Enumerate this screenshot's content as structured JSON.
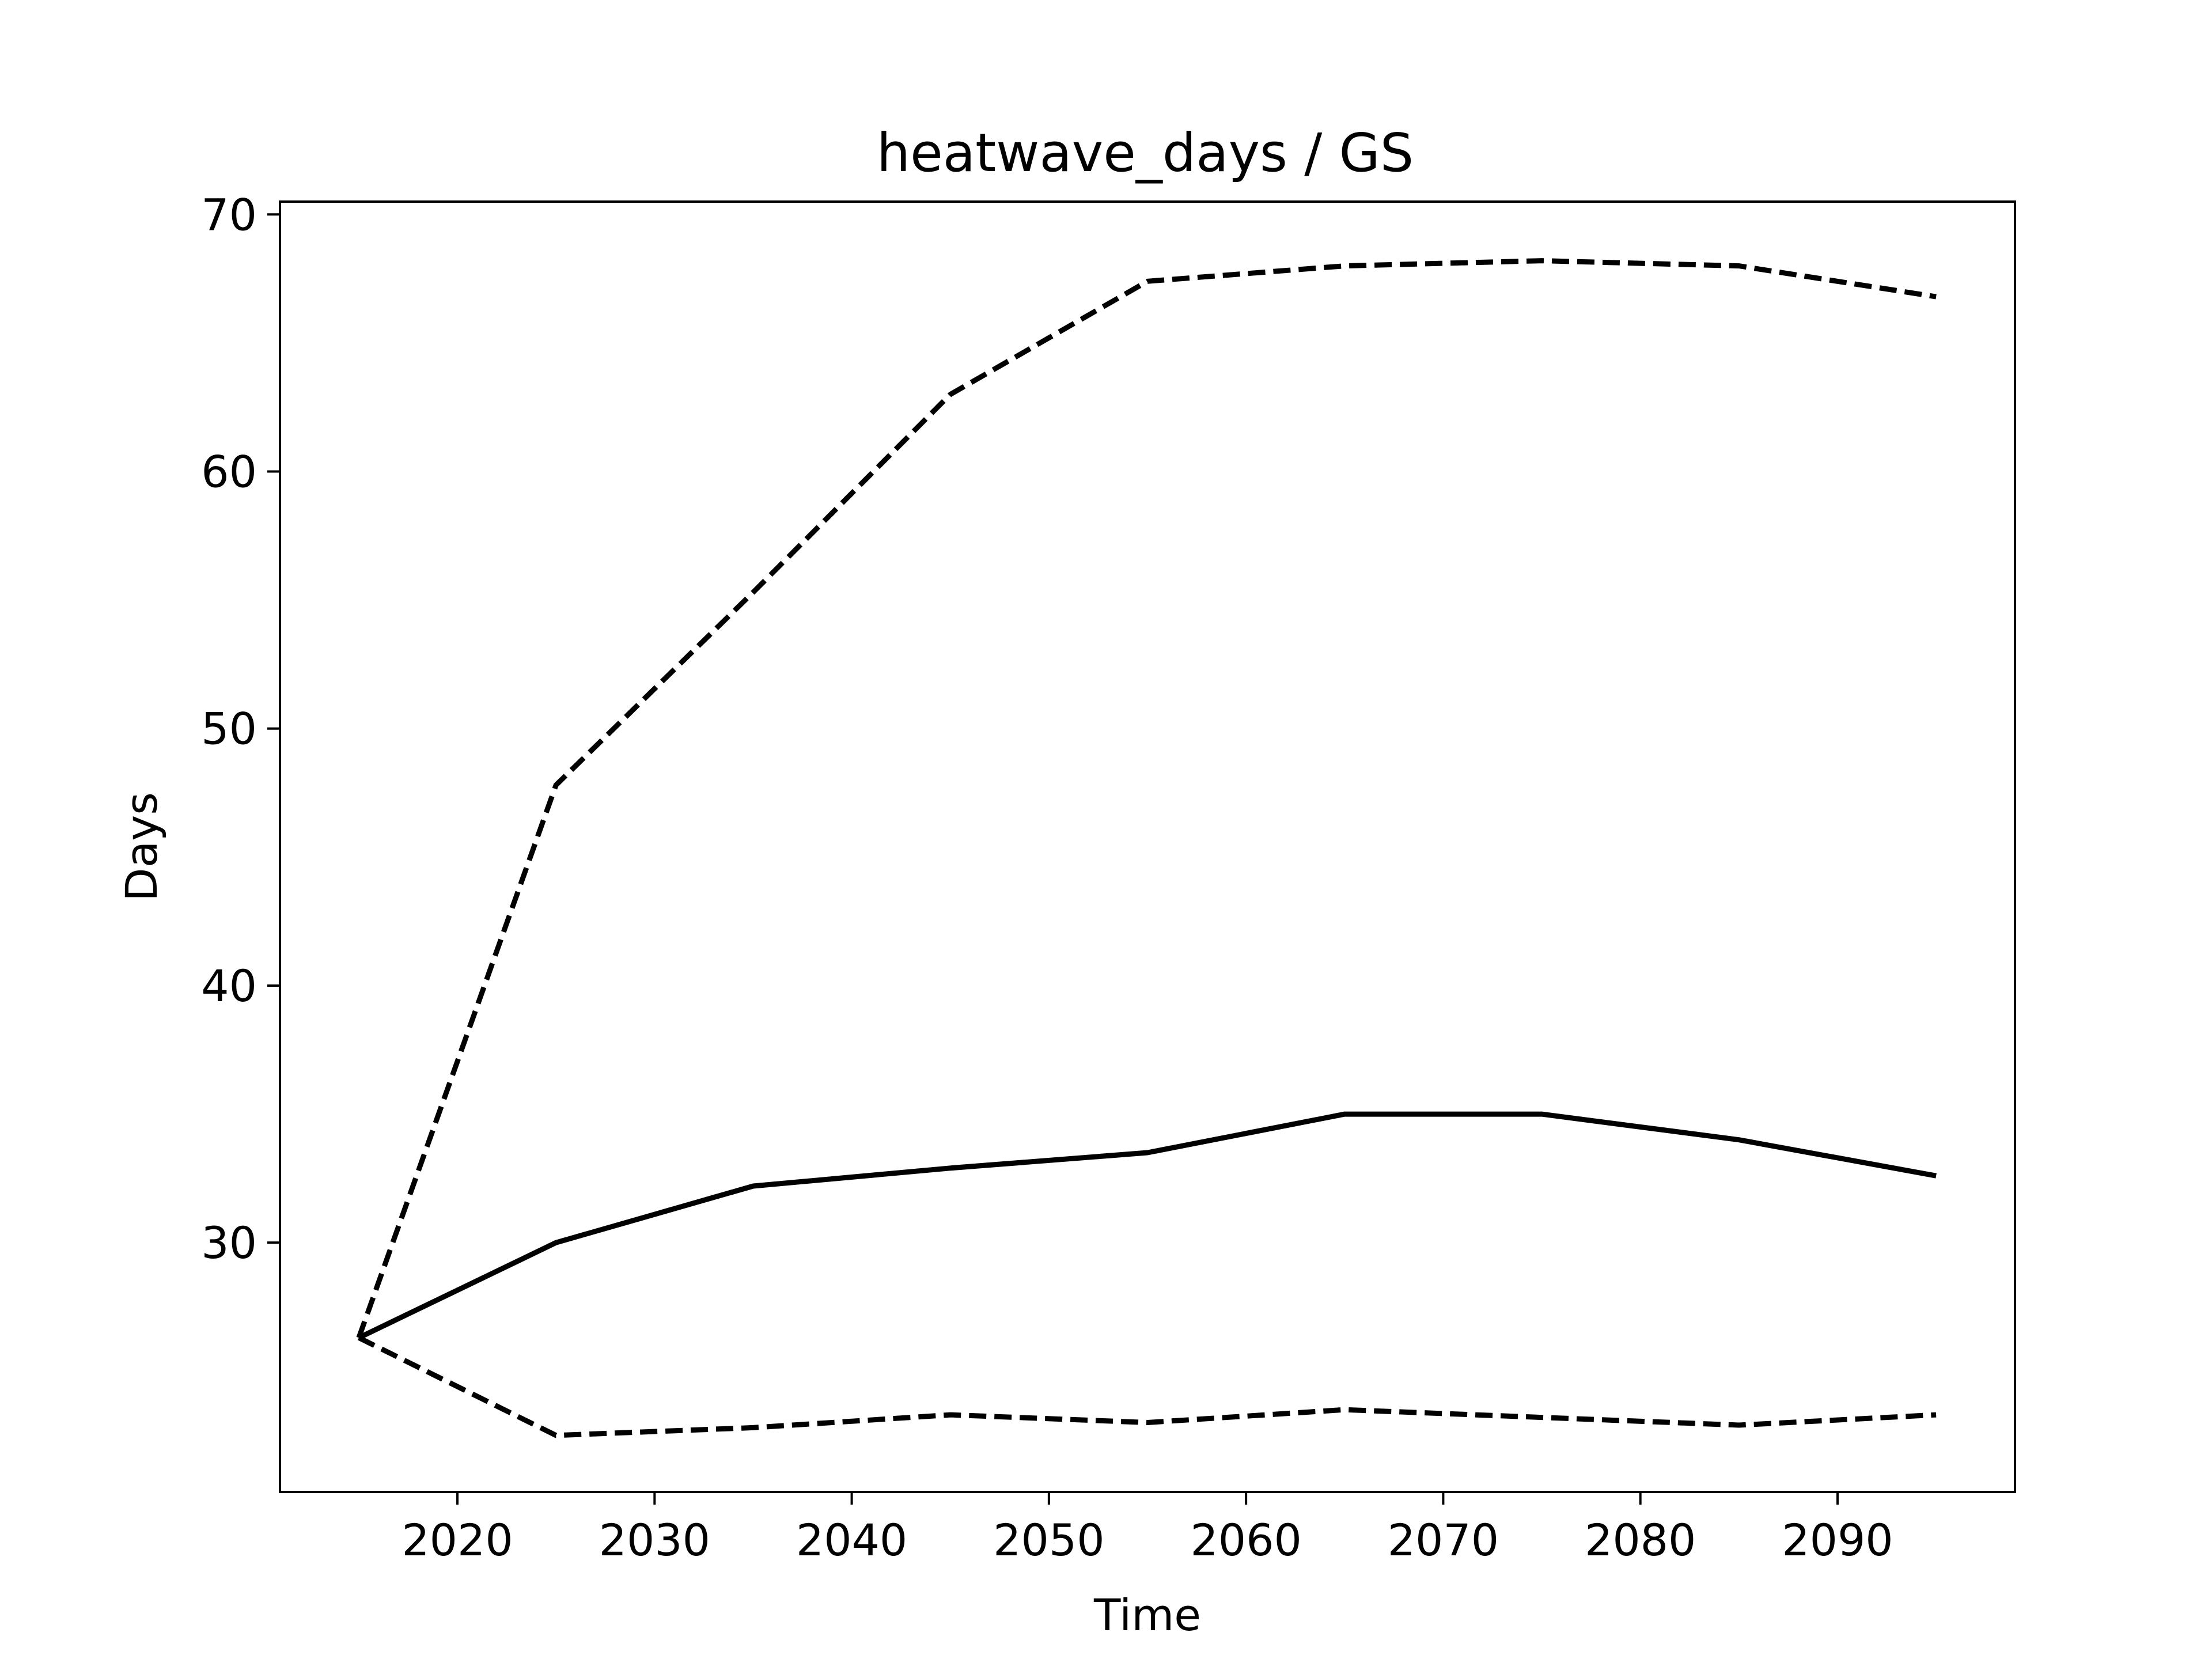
{
  "chart_data": {
    "type": "line",
    "title": "heatwave_days / GS",
    "xlabel": "Time",
    "ylabel": "Days",
    "xlim": [
      2011,
      2099
    ],
    "ylim": [
      20.3,
      70.5
    ],
    "xticks": [
      2020,
      2030,
      2040,
      2050,
      2060,
      2070,
      2080,
      2090
    ],
    "yticks": [
      30,
      40,
      50,
      60,
      70
    ],
    "x": [
      2015,
      2025,
      2035,
      2045,
      2055,
      2065,
      2075,
      2085,
      2095
    ],
    "grid": false,
    "legend": "none",
    "series": [
      {
        "style": "solid",
        "color": "#000000",
        "values": [
          26.3,
          30.0,
          32.2,
          32.9,
          33.5,
          35.0,
          35.0,
          34.0,
          32.6
        ]
      },
      {
        "style": "dashed",
        "color": "#000000",
        "values": [
          26.3,
          47.8,
          55.3,
          63.0,
          67.4,
          68.0,
          68.2,
          68.0,
          66.8
        ]
      },
      {
        "style": "dashed",
        "color": "#000000",
        "values": [
          26.3,
          22.5,
          22.8,
          23.3,
          23.0,
          23.5,
          23.2,
          22.9,
          23.3
        ]
      }
    ]
  }
}
